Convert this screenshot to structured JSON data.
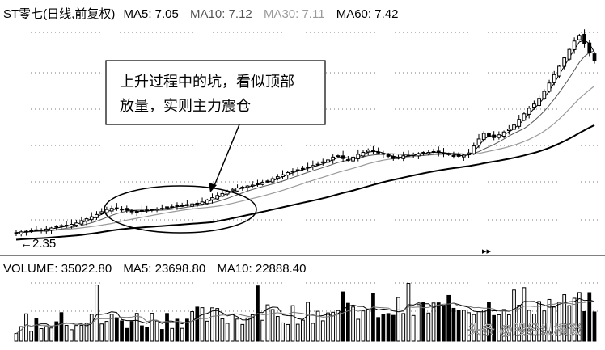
{
  "header": {
    "title": "ST零七(日线,前复权)",
    "ma": [
      {
        "label": "MA5: 7.05",
        "color": "#000000"
      },
      {
        "label": "MA10: 7.12",
        "color": "#555555"
      },
      {
        "label": "MA30: 7.11",
        "color": "#9a9a9a"
      },
      {
        "label": "MA60: 7.42",
        "color": "#000000"
      }
    ]
  },
  "annotation": {
    "lines": [
      "上升过程中的坑，看似顶部",
      "放量，实则主力震仓"
    ]
  },
  "price_low_label": "←2.35",
  "arrows_label": "▸▸",
  "volume_header": {
    "items": [
      {
        "label": "VOLUME: 35022.80",
        "color": "#000000"
      },
      {
        "label": "MA5: 23698.80",
        "color": "#000000"
      },
      {
        "label": "MA10: 22888.40",
        "color": "#000000"
      }
    ]
  },
  "watermark": "头条 @股经纵横谈",
  "chart_data": {
    "type": "candlestick",
    "low_marker": 2.35,
    "price_range": [
      2.0,
      9.8
    ],
    "close": [
      2.35,
      2.38,
      2.4,
      2.42,
      2.44,
      2.45,
      2.48,
      2.52,
      2.55,
      2.58,
      2.62,
      2.65,
      2.7,
      2.78,
      2.85,
      2.92,
      3.0,
      3.1,
      3.18,
      3.22,
      3.2,
      3.18,
      3.15,
      3.12,
      3.1,
      3.12,
      3.15,
      3.18,
      3.2,
      3.22,
      3.25,
      3.28,
      3.3,
      3.32,
      3.35,
      3.38,
      3.4,
      3.45,
      3.52,
      3.6,
      3.68,
      3.75,
      3.82,
      3.9,
      3.95,
      3.98,
      4.02,
      4.05,
      4.1,
      4.15,
      4.2,
      4.28,
      4.35,
      4.42,
      4.5,
      4.55,
      4.6,
      4.65,
      4.7,
      4.75,
      4.8,
      4.88,
      4.95,
      5.05,
      5.1,
      5.0,
      4.95,
      5.05,
      5.15,
      5.22,
      5.3,
      5.25,
      5.2,
      5.15,
      5.08,
      5.0,
      5.05,
      5.1,
      5.12,
      5.15,
      5.18,
      5.2,
      5.22,
      5.25,
      5.22,
      5.18,
      5.15,
      5.1,
      5.08,
      5.12,
      5.2,
      5.45,
      5.7,
      5.9,
      5.8,
      5.75,
      5.85,
      5.95,
      6.05,
      6.2,
      6.4,
      6.6,
      6.8,
      6.95,
      7.15,
      7.4,
      7.7,
      8.0,
      8.3,
      8.6,
      8.9,
      9.2,
      9.4,
      9.1,
      8.8,
      8.5
    ]
  }
}
